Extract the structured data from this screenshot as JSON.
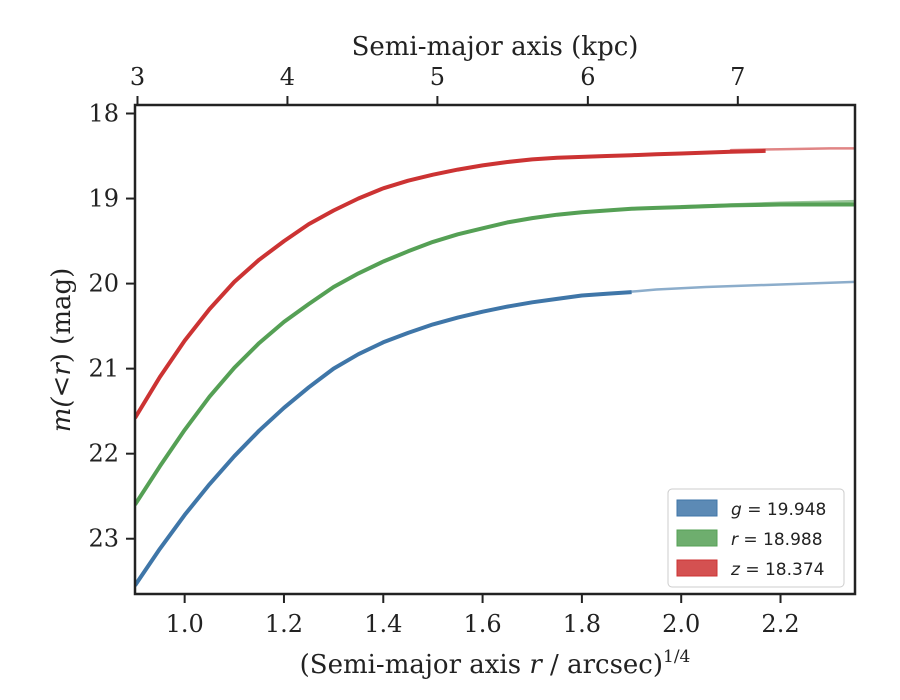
{
  "chart_data": {
    "type": "line",
    "xlabel_prefix": "(Semi-major axis ",
    "xlabel_var": "r",
    "xlabel_suffix": " / arcsec)",
    "xlabel_sup": "1/4",
    "ylabel_prefix": "m(<",
    "ylabel_var": "r",
    "ylabel_suffix": ") (mag)",
    "top_xlabel": "Semi-major axis (kpc)",
    "xlim": [
      0.9,
      2.35
    ],
    "ylim": [
      23.65,
      17.9
    ],
    "y_inverted": true,
    "grid": false,
    "legend_position": "lower-right",
    "x_ticks": [
      1.0,
      1.2,
      1.4,
      1.6,
      1.8,
      2.0,
      2.2
    ],
    "x_tick_labels": [
      "1.0",
      "1.2",
      "1.4",
      "1.6",
      "1.8",
      "2.0",
      "2.2"
    ],
    "y_ticks": [
      18,
      19,
      20,
      21,
      22,
      23
    ],
    "y_tick_labels": [
      "18",
      "19",
      "20",
      "21",
      "22",
      "23"
    ],
    "top_ticks_kpc": [
      3,
      4,
      5,
      6,
      7
    ],
    "top_tick_labels": [
      "3",
      "4",
      "5",
      "6",
      "7"
    ],
    "top_tick_x_positions": [
      0.905,
      1.207,
      1.509,
      1.812,
      2.114
    ],
    "series": [
      {
        "name_var": "g",
        "name_value": " = 19.948",
        "color": "#3f76a8",
        "data_x": [
          0.9,
          0.95,
          1.0,
          1.05,
          1.1,
          1.15,
          1.2,
          1.25,
          1.3,
          1.35,
          1.4,
          1.45,
          1.5,
          1.55,
          1.6,
          1.65,
          1.7,
          1.75,
          1.8,
          1.85,
          1.9
        ],
        "data_y": [
          23.55,
          23.12,
          22.72,
          22.36,
          22.03,
          21.73,
          21.46,
          21.22,
          21.0,
          20.83,
          20.69,
          20.58,
          20.48,
          20.4,
          20.33,
          20.27,
          20.22,
          20.18,
          20.14,
          20.12,
          20.1
        ],
        "model_x": [
          1.85,
          1.95,
          2.05,
          2.15,
          2.25,
          2.35
        ],
        "model_y": [
          20.12,
          20.07,
          20.04,
          20.02,
          20.0,
          19.98
        ]
      },
      {
        "name_var": "r",
        "name_value": " = 18.988",
        "color": "#55a055",
        "data_x": [
          0.9,
          0.95,
          1.0,
          1.05,
          1.1,
          1.15,
          1.2,
          1.25,
          1.3,
          1.35,
          1.4,
          1.45,
          1.5,
          1.55,
          1.6,
          1.65,
          1.7,
          1.75,
          1.8,
          1.85,
          1.9,
          1.95,
          2.0,
          2.1,
          2.2,
          2.35
        ],
        "data_y": [
          22.6,
          22.15,
          21.72,
          21.33,
          20.99,
          20.7,
          20.45,
          20.24,
          20.04,
          19.88,
          19.74,
          19.62,
          19.51,
          19.42,
          19.35,
          19.28,
          19.23,
          19.19,
          19.16,
          19.14,
          19.12,
          19.11,
          19.1,
          19.08,
          19.07,
          19.07
        ],
        "model_x": [
          2.0,
          2.1,
          2.2,
          2.35
        ],
        "model_y": [
          19.09,
          19.07,
          19.05,
          19.03
        ]
      },
      {
        "name_var": "z",
        "name_value": " = 18.374",
        "color": "#cc3333",
        "data_x": [
          0.9,
          0.95,
          1.0,
          1.05,
          1.1,
          1.15,
          1.2,
          1.25,
          1.3,
          1.35,
          1.4,
          1.45,
          1.5,
          1.55,
          1.6,
          1.65,
          1.7,
          1.75,
          1.8,
          1.85,
          1.9,
          1.95,
          2.0,
          2.05,
          2.1,
          2.17
        ],
        "data_y": [
          21.58,
          21.1,
          20.67,
          20.3,
          19.98,
          19.72,
          19.5,
          19.3,
          19.14,
          19.0,
          18.88,
          18.79,
          18.72,
          18.66,
          18.61,
          18.57,
          18.54,
          18.52,
          18.51,
          18.5,
          18.49,
          18.48,
          18.47,
          18.46,
          18.45,
          18.44
        ],
        "model_x": [
          2.1,
          2.2,
          2.3,
          2.35
        ],
        "model_y": [
          18.43,
          18.42,
          18.41,
          18.41
        ]
      }
    ]
  }
}
